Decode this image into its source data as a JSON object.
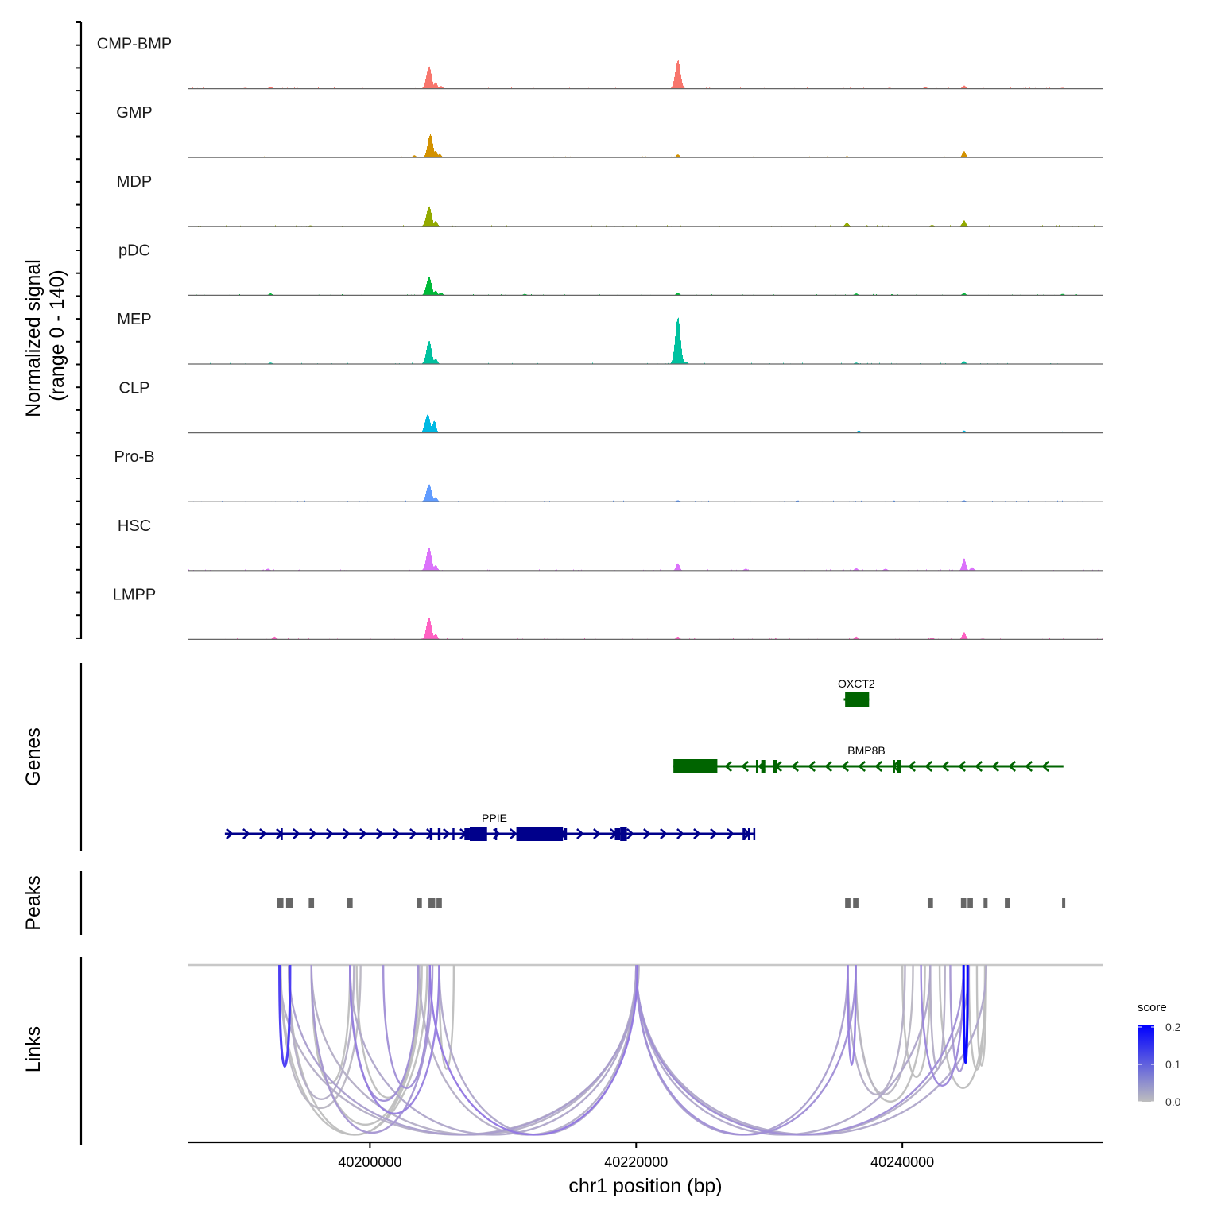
{
  "chart_data": {
    "type": "area",
    "title": "",
    "xlabel": "chr1 position (bp)",
    "ylabel": "Normalized signal\n(range 0 - 140)",
    "ylabel_lines": [
      "Normalized signal",
      "(range 0 - 140)"
    ],
    "ylim": [
      0,
      140
    ],
    "xlim": [
      40186300,
      40255100
    ],
    "x_ticks": [
      40200000,
      40220000,
      40240000
    ],
    "x_tick_labels": [
      "40200000",
      "40220000",
      "40240000"
    ],
    "grid": false,
    "coverage_tracks": [
      {
        "name": "CMP-BMP",
        "color": "#F8766D",
        "peaks": [
          [
            40190600,
            2
          ],
          [
            40192500,
            4
          ],
          [
            40204400,
            49
          ],
          [
            40204900,
            14
          ],
          [
            40205300,
            6
          ],
          [
            40223100,
            62
          ],
          [
            40222900,
            24
          ],
          [
            40241700,
            3
          ],
          [
            40244600,
            7
          ],
          [
            40252000,
            2
          ],
          [
            40239000,
            2
          ]
        ]
      },
      {
        "name": "GMP",
        "color": "#D39200",
        "peaks": [
          [
            40203300,
            5
          ],
          [
            40204500,
            50
          ],
          [
            40204900,
            15
          ],
          [
            40205200,
            8
          ],
          [
            40223100,
            7
          ],
          [
            40235800,
            3
          ],
          [
            40242200,
            2
          ],
          [
            40244600,
            14
          ],
          [
            40252000,
            2
          ]
        ]
      },
      {
        "name": "MDP",
        "color": "#93AA00",
        "peaks": [
          [
            40204400,
            44
          ],
          [
            40204900,
            12
          ],
          [
            40235800,
            8
          ],
          [
            40242200,
            3
          ],
          [
            40244600,
            13
          ],
          [
            40195500,
            2
          ]
        ]
      },
      {
        "name": "pDC",
        "color": "#00BA38",
        "peaks": [
          [
            40192500,
            4
          ],
          [
            40204400,
            40
          ],
          [
            40204900,
            10
          ],
          [
            40205300,
            6
          ],
          [
            40211600,
            3
          ],
          [
            40223100,
            5
          ],
          [
            40236500,
            4
          ],
          [
            40244600,
            5
          ],
          [
            40252000,
            3
          ]
        ]
      },
      {
        "name": "MEP",
        "color": "#00C19F",
        "peaks": [
          [
            40192500,
            3
          ],
          [
            40204400,
            51
          ],
          [
            40204900,
            12
          ],
          [
            40223100,
            102
          ],
          [
            40222900,
            16
          ],
          [
            40223700,
            5
          ],
          [
            40236500,
            3
          ],
          [
            40244600,
            6
          ]
        ]
      },
      {
        "name": "CLP",
        "color": "#00B9E3",
        "peaks": [
          [
            40192700,
            2
          ],
          [
            40204300,
            41
          ],
          [
            40204800,
            27
          ],
          [
            40236700,
            5
          ],
          [
            40244600,
            5
          ],
          [
            40252000,
            3
          ]
        ]
      },
      {
        "name": "Pro-B",
        "color": "#619CFF",
        "peaks": [
          [
            40204400,
            38
          ],
          [
            40204900,
            10
          ],
          [
            40223100,
            3
          ],
          [
            40244600,
            3
          ]
        ]
      },
      {
        "name": "HSC",
        "color": "#DB72FB",
        "peaks": [
          [
            40192300,
            4
          ],
          [
            40204400,
            50
          ],
          [
            40204900,
            12
          ],
          [
            40223100,
            16
          ],
          [
            40228200,
            4
          ],
          [
            40236500,
            5
          ],
          [
            40238700,
            4
          ],
          [
            40244600,
            27
          ],
          [
            40245200,
            7
          ]
        ]
      },
      {
        "name": "LMPP",
        "color": "#FF61C3",
        "peaks": [
          [
            40192800,
            6
          ],
          [
            40204400,
            47
          ],
          [
            40204900,
            12
          ],
          [
            40223100,
            6
          ],
          [
            40236500,
            6
          ],
          [
            40242200,
            4
          ],
          [
            40244600,
            16
          ],
          [
            40246000,
            2
          ]
        ]
      }
    ],
    "genes": [
      {
        "name": "OXCT2",
        "strand": "-",
        "color": "#006400",
        "start": 40235600,
        "end": 40237500,
        "exons": [
          [
            40235700,
            40237500
          ]
        ],
        "row": 0
      },
      {
        "name": "BMP8B",
        "strand": "-",
        "color": "#006400",
        "start": 40222800,
        "end": 40252100,
        "exons": [
          [
            40222800,
            40226100
          ],
          [
            40229000,
            40229100
          ],
          [
            40229400,
            40229700
          ],
          [
            40230300,
            40230600
          ],
          [
            40239300,
            40239400
          ],
          [
            40239600,
            40239900
          ]
        ],
        "row": 1
      },
      {
        "name": "PPIE",
        "strand": "+",
        "color": "#00008B",
        "start": 40189100,
        "end": 40228900,
        "exons": [
          [
            40193300,
            40193400
          ],
          [
            40204500,
            40204700
          ],
          [
            40205100,
            40205300
          ],
          [
            40206200,
            40206300
          ],
          [
            40207100,
            40207500
          ],
          [
            40207500,
            40208800
          ],
          [
            40209400,
            40209500
          ],
          [
            40211000,
            40214500
          ],
          [
            40214600,
            40214800
          ],
          [
            40218400,
            40218800
          ],
          [
            40218800,
            40219300
          ],
          [
            40228000,
            40228200
          ],
          [
            40228400,
            40228500
          ],
          [
            40228800,
            40228900
          ]
        ],
        "row": 2
      }
    ],
    "peaks": [
      [
        40193000,
        40193500
      ],
      [
        40193700,
        40194200
      ],
      [
        40195400,
        40195800
      ],
      [
        40198300,
        40198700
      ],
      [
        40203500,
        40203900
      ],
      [
        40204400,
        40204900
      ],
      [
        40205000,
        40205400
      ],
      [
        40235700,
        40236100
      ],
      [
        40236300,
        40236700
      ],
      [
        40241900,
        40242300
      ],
      [
        40244400,
        40244800
      ],
      [
        40244900,
        40245300
      ],
      [
        40246100,
        40246400
      ],
      [
        40247700,
        40248100
      ],
      [
        40252000,
        40252200
      ]
    ],
    "links": [
      {
        "from": 40193200,
        "to": 40194000,
        "score": 0.15
      },
      {
        "from": 40193200,
        "to": 40220200,
        "score": 0.02
      },
      {
        "from": 40193300,
        "to": 40199300,
        "score": 0.01
      },
      {
        "from": 40193300,
        "to": 40204300,
        "score": 0.0
      },
      {
        "from": 40193900,
        "to": 40198800,
        "score": 0.02
      },
      {
        "from": 40193900,
        "to": 40220100,
        "score": 0.04
      },
      {
        "from": 40193900,
        "to": 40203900,
        "score": 0.0
      },
      {
        "from": 40195600,
        "to": 40198500,
        "score": 0.0
      },
      {
        "from": 40195600,
        "to": 40220000,
        "score": 0.02
      },
      {
        "from": 40195600,
        "to": 40203700,
        "score": 0.0
      },
      {
        "from": 40195600,
        "to": 40204700,
        "score": 0.05
      },
      {
        "from": 40198500,
        "to": 40203600,
        "score": 0.06
      },
      {
        "from": 40198500,
        "to": 40220000,
        "score": 0.03
      },
      {
        "from": 40198500,
        "to": 40205200,
        "score": 0.08
      },
      {
        "from": 40203700,
        "to": 40199000,
        "score": 0.0
      },
      {
        "from": 40203700,
        "to": 40220000,
        "score": 0.02
      },
      {
        "from": 40204500,
        "to": 40220100,
        "score": 0.09
      },
      {
        "from": 40204500,
        "to": 40201000,
        "score": 0.06
      },
      {
        "from": 40205200,
        "to": 40220000,
        "score": 0.03
      },
      {
        "from": 40205200,
        "to": 40206300,
        "score": 0.0
      },
      {
        "from": 40235900,
        "to": 40236500,
        "score": 0.08
      },
      {
        "from": 40235900,
        "to": 40220000,
        "score": 0.04
      },
      {
        "from": 40235900,
        "to": 40240200,
        "score": 0.02
      },
      {
        "from": 40236500,
        "to": 40220000,
        "score": 0.06
      },
      {
        "from": 40236500,
        "to": 40241700,
        "score": 0.0
      },
      {
        "from": 40236500,
        "to": 40240800,
        "score": 0.01
      },
      {
        "from": 40242100,
        "to": 40220000,
        "score": 0.03
      },
      {
        "from": 40242100,
        "to": 40240000,
        "score": 0.0
      },
      {
        "from": 40242100,
        "to": 40243200,
        "score": 0.02
      },
      {
        "from": 40244600,
        "to": 40244900,
        "score": 0.2
      },
      {
        "from": 40244600,
        "to": 40220000,
        "score": 0.06
      },
      {
        "from": 40244600,
        "to": 40241400,
        "score": 0.07
      },
      {
        "from": 40245000,
        "to": 40220000,
        "score": 0.02
      },
      {
        "from": 40245000,
        "to": 40243600,
        "score": 0.05
      },
      {
        "from": 40245000,
        "to": 40246200,
        "score": 0.0
      },
      {
        "from": 40246300,
        "to": 40220000,
        "score": 0.03
      },
      {
        "from": 40246300,
        "to": 40242800,
        "score": 0.0
      },
      {
        "from": 40246300,
        "to": 40245600,
        "score": 0.0
      }
    ],
    "links_legend": {
      "title": "score",
      "ticks": [
        0.0,
        0.1,
        0.2
      ],
      "tick_labels": [
        "0.0",
        "0.1",
        "0.2"
      ],
      "low_color": "#BEBEBE",
      "high_color": "#0000FF"
    },
    "panel_labels": {
      "genes": "Genes",
      "peaks": "Peaks",
      "links": "Links"
    },
    "colors": {
      "peak_block": "#666666",
      "baseline": "#666666",
      "links_baseline": "#C8C8C8",
      "axis": "#000000"
    }
  }
}
